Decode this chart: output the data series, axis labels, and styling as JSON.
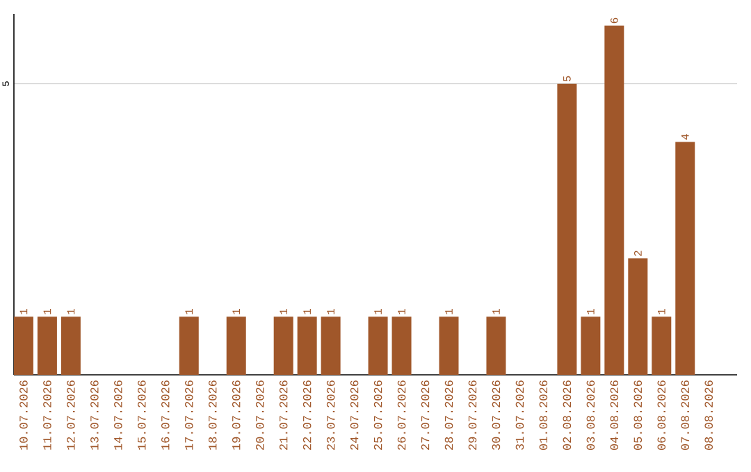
{
  "chart_data": {
    "type": "bar",
    "categories": [
      "10.07.2026",
      "11.07.2026",
      "12.07.2026",
      "13.07.2026",
      "14.07.2026",
      "15.07.2026",
      "16.07.2026",
      "17.07.2026",
      "18.07.2026",
      "19.07.2026",
      "20.07.2026",
      "21.07.2026",
      "22.07.2026",
      "23.07.2026",
      "24.07.2026",
      "25.07.2026",
      "26.07.2026",
      "27.07.2026",
      "28.07.2026",
      "29.07.2026",
      "30.07.2026",
      "31.07.2026",
      "01.08.2026",
      "02.08.2026",
      "03.08.2026",
      "04.08.2026",
      "05.08.2026",
      "06.08.2026",
      "07.08.2026",
      "08.08.2026"
    ],
    "values": [
      1,
      1,
      1,
      0,
      0,
      0,
      0,
      1,
      0,
      1,
      0,
      1,
      1,
      1,
      0,
      1,
      1,
      0,
      1,
      0,
      1,
      0,
      0,
      5,
      1,
      6,
      2,
      1,
      4,
      0
    ],
    "value_labels": [
      "1",
      "1",
      "1",
      null,
      null,
      null,
      null,
      "1",
      null,
      "1",
      null,
      "1",
      "1",
      "1",
      null,
      "1",
      "1",
      null,
      "1",
      null,
      "1",
      null,
      null,
      "5",
      "1",
      "6",
      "2",
      "1",
      "4",
      null
    ],
    "color": "#a0572a",
    "ylim": [
      0,
      6.2
    ],
    "yticks": [
      5
    ],
    "grid": "y"
  }
}
